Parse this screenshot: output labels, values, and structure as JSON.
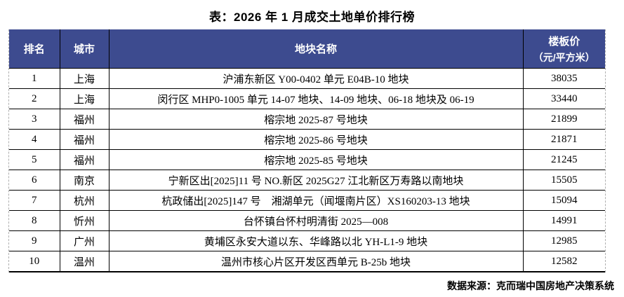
{
  "page": {
    "title": "表：2026 年 1 月成交土地单价排行榜",
    "source_note": "数据来源：克而瑞中国房地产决策系统"
  },
  "colors": {
    "header_bg": "#3D4B8F",
    "header_text": "#FFFFFF",
    "grid_line": "#000000",
    "outer_dashed_edge": "#B0B0B0"
  },
  "table": {
    "headers": {
      "rank": "排名",
      "city": "城市",
      "plot_name": "地块名称",
      "price_line1": "楼板价",
      "price_line2": "（元/平方米）"
    },
    "rows": [
      {
        "rank": "1",
        "city": "上海",
        "plot_name": "沪浦东新区 Y00-0402 单元 E04B-10 地块",
        "price": "38035"
      },
      {
        "rank": "2",
        "city": "上海",
        "plot_name": "闵行区 MHP0-1005 单元 14-07 地块、14-09 地块、06-18 地块及 06-19",
        "price": "33440"
      },
      {
        "rank": "3",
        "city": "福州",
        "plot_name": "榕宗地 2025-87 号地块",
        "price": "21899"
      },
      {
        "rank": "4",
        "city": "福州",
        "plot_name": "榕宗地 2025-86 号地块",
        "price": "21871"
      },
      {
        "rank": "5",
        "city": "福州",
        "plot_name": "榕宗地 2025-85 号地块",
        "price": "21245"
      },
      {
        "rank": "6",
        "city": "南京",
        "plot_name": "宁新区出[2025]11 号 NO.新区 2025G27 江北新区万寿路以南地块",
        "price": "15505"
      },
      {
        "rank": "7",
        "city": "杭州",
        "plot_name": "杭政储出[2025]147 号　湘湖单元（闻堰南片区）XS160203-13 地块",
        "price": "15094"
      },
      {
        "rank": "8",
        "city": "忻州",
        "plot_name": "台怀镇台怀村明清街 2025—008",
        "price": "14991"
      },
      {
        "rank": "9",
        "city": "广州",
        "plot_name": "黄埔区永安大道以东、华峰路以北 YH-L1-9 地块",
        "price": "12985"
      },
      {
        "rank": "10",
        "city": "温州",
        "plot_name": "温州市核心片区开发区西单元 B-25b 地块",
        "price": "12582"
      }
    ]
  }
}
